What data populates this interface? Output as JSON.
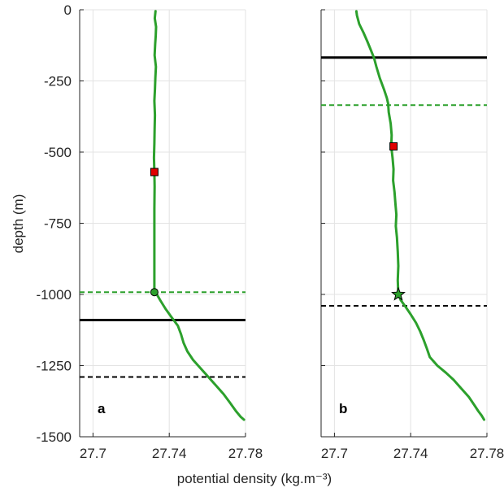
{
  "chart_data": [
    {
      "panel": "a",
      "type": "line",
      "xlim": [
        27.693,
        27.78
      ],
      "ylim": [
        -1500,
        0
      ],
      "xticks": [
        27.7,
        27.74,
        27.78
      ],
      "xtick_labels": [
        "27.7",
        "27.74",
        "27.78"
      ],
      "yticks": [
        0,
        -250,
        -500,
        -750,
        -1000,
        -1250,
        -1500
      ],
      "ytick_labels": [
        "0",
        "-250",
        "-500",
        "-750",
        "-1000",
        "-1250",
        "-1500"
      ],
      "ylabel": "depth (m)",
      "grid": true,
      "series": [
        {
          "color": "#2ca02c",
          "x": [
            27.7328,
            27.7324,
            27.7331,
            27.7329,
            27.7326,
            27.7323,
            27.733,
            27.7327,
            27.7325,
            27.7322,
            27.7325,
            27.7323,
            27.7322,
            27.732,
            27.7322,
            27.7323,
            27.7322,
            27.7322,
            27.7322,
            27.7322,
            27.7322,
            27.7322,
            27.7328,
            27.7335,
            27.7352,
            27.738,
            27.7412,
            27.7445,
            27.7462,
            27.7475,
            27.7495,
            27.7525,
            27.7565,
            27.7605,
            27.7645,
            27.7685,
            27.7718,
            27.775,
            27.7775,
            27.7792
          ],
          "y": [
            -5,
            -30,
            -60,
            -90,
            -120,
            -160,
            -200,
            -240,
            -280,
            -320,
            -370,
            -420,
            -470,
            -520,
            -570,
            -620,
            -700,
            -800,
            -900,
            -950,
            -975,
            -985,
            -992,
            -1000,
            -1020,
            -1050,
            -1080,
            -1110,
            -1140,
            -1170,
            -1200,
            -1230,
            -1260,
            -1290,
            -1320,
            -1350,
            -1380,
            -1410,
            -1430,
            -1440
          ]
        }
      ],
      "markers": [
        {
          "shape": "square",
          "x": 27.7322,
          "y": -570,
          "color": "#e00000"
        },
        {
          "shape": "circle",
          "x": 27.7322,
          "y": -992,
          "color": "#2ca02c"
        }
      ],
      "hlines": [
        {
          "y": -992,
          "color": "#2ca02c",
          "style": "dashed"
        },
        {
          "y": -1090,
          "color": "#000000",
          "style": "solid"
        },
        {
          "y": -1290,
          "color": "#000000",
          "style": "dashed"
        }
      ]
    },
    {
      "panel": "b",
      "type": "line",
      "xlim": [
        27.693,
        27.78
      ],
      "ylim": [
        -1500,
        0
      ],
      "xticks": [
        27.7,
        27.74,
        27.78
      ],
      "xtick_labels": [
        "27.7",
        "27.74",
        "27.78"
      ],
      "yticks": [
        0,
        -250,
        -500,
        -750,
        -1000,
        -1250,
        -1500
      ],
      "grid": true,
      "series": [
        {
          "color": "#2ca02c",
          "x": [
            27.7115,
            27.7118,
            27.713,
            27.7152,
            27.7172,
            27.719,
            27.7208,
            27.722,
            27.7238,
            27.726,
            27.7275,
            27.7282,
            27.7285,
            27.7295,
            27.73,
            27.7298,
            27.7305,
            27.731,
            27.7308,
            27.7315,
            27.732,
            27.7325,
            27.7322,
            27.7328,
            27.7332,
            27.7335,
            27.7332,
            27.7335,
            27.7348,
            27.7375,
            27.74,
            27.7428,
            27.745,
            27.7468,
            27.7485,
            27.75,
            27.754,
            27.7585,
            27.7625,
            27.7665,
            27.7705,
            27.7735,
            27.7755,
            27.7772,
            27.7785
          ],
          "y": [
            -5,
            -20,
            -50,
            -80,
            -110,
            -140,
            -170,
            -200,
            -240,
            -280,
            -310,
            -330,
            -360,
            -400,
            -440,
            -480,
            -520,
            -560,
            -600,
            -640,
            -680,
            -720,
            -760,
            -800,
            -850,
            -900,
            -950,
            -1000,
            -1020,
            -1045,
            -1070,
            -1100,
            -1130,
            -1160,
            -1190,
            -1220,
            -1250,
            -1275,
            -1300,
            -1330,
            -1360,
            -1390,
            -1410,
            -1425,
            -1440
          ]
        }
      ],
      "markers": [
        {
          "shape": "square",
          "x": 27.731,
          "y": -480,
          "color": "#e00000"
        },
        {
          "shape": "star",
          "x": 27.7335,
          "y": -1000,
          "color": "#2ca02c"
        }
      ],
      "hlines": [
        {
          "y": -168,
          "color": "#000000",
          "style": "solid"
        },
        {
          "y": -335,
          "color": "#2ca02c",
          "style": "dashed"
        },
        {
          "y": -1040,
          "color": "#000000",
          "style": "dashed"
        }
      ]
    }
  ],
  "xlabel": "potential density (kg.m⁻³)",
  "panel_labels": [
    "a",
    "b"
  ]
}
